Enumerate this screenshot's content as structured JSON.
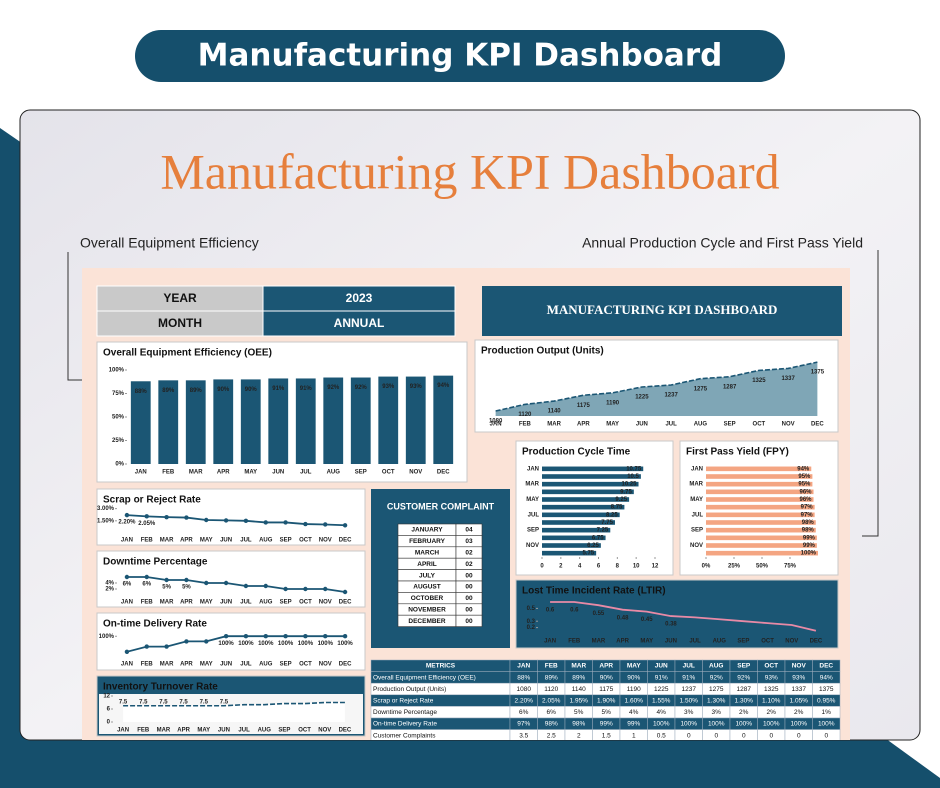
{
  "banner": "Manufacturing KPI Dashboard",
  "title": "Manufacturing KPI Dashboard",
  "callouts": [
    "Overall Equipment Efficiency",
    "Annual Production Cycle and First Pass Yield"
  ],
  "selector": {
    "year_label": "YEAR",
    "year": "2023",
    "month_label": "MONTH",
    "month": "ANNUAL"
  },
  "dashboard_header": "MANUFACTURING KPI DASHBOARD",
  "customer_complaint": {
    "title": "CUSTOMER COMPLAINT",
    "rows": [
      [
        "JANUARY",
        "04"
      ],
      [
        "FEBRUARY",
        "03"
      ],
      [
        "MARCH",
        "02"
      ],
      [
        "APRIL",
        "02"
      ],
      [
        "JULY",
        "00"
      ],
      [
        "AUGUST",
        "00"
      ],
      [
        "OCTOBER",
        "00"
      ],
      [
        "NOVEMBER",
        "00"
      ],
      [
        "DECEMBER",
        "00"
      ]
    ]
  },
  "metrics_table": {
    "header": [
      "METRICS",
      "JAN",
      "FEB",
      "MAR",
      "APR",
      "MAY",
      "JUN",
      "JUL",
      "AUG",
      "SEP",
      "OCT",
      "NOV",
      "DEC"
    ],
    "rows": [
      [
        "Overall Equipment Efficiency (OEE)",
        "88%",
        "89%",
        "89%",
        "90%",
        "90%",
        "91%",
        "91%",
        "92%",
        "92%",
        "93%",
        "93%",
        "94%"
      ],
      [
        "Production Output (Units)",
        "1080",
        "1120",
        "1140",
        "1175",
        "1190",
        "1225",
        "1237",
        "1275",
        "1287",
        "1325",
        "1337",
        "1375"
      ],
      [
        "Scrap or Reject Rate",
        "2.20%",
        "2.05%",
        "1.95%",
        "1.90%",
        "1.60%",
        "1.55%",
        "1.50%",
        "1.30%",
        "1.30%",
        "1.10%",
        "1.05%",
        "0.95%"
      ],
      [
        "Downtime Percentage",
        "6%",
        "6%",
        "5%",
        "5%",
        "4%",
        "4%",
        "3%",
        "3%",
        "2%",
        "2%",
        "2%",
        "1%"
      ],
      [
        "On-time Delivery Rate",
        "97%",
        "98%",
        "98%",
        "99%",
        "99%",
        "100%",
        "100%",
        "100%",
        "100%",
        "100%",
        "100%",
        "100%"
      ],
      [
        "Customer Complaints",
        "3.5",
        "2.5",
        "2",
        "1.5",
        "1",
        "0.5",
        "0",
        "0",
        "0",
        "0",
        "0",
        "0"
      ]
    ]
  },
  "chart_data": [
    {
      "type": "bar",
      "title": "Overall Equipment Efficiency (OEE)",
      "categories": [
        "JAN",
        "FEB",
        "MAR",
        "APR",
        "MAY",
        "JUN",
        "JUL",
        "AUG",
        "SEP",
        "OCT",
        "NOV",
        "DEC"
      ],
      "values": [
        88,
        89,
        89,
        90,
        90,
        91,
        91,
        92,
        92,
        93,
        93,
        94
      ],
      "value_labels": [
        "88%",
        "89%",
        "89%",
        "90%",
        "90%",
        "91%",
        "91%",
        "92%",
        "92%",
        "93%",
        "93%",
        "94%"
      ],
      "color": "#1b5674",
      "ylim": [
        0,
        100
      ],
      "yticks": [
        {
          "value": 0,
          "label": "0%"
        },
        {
          "value": 25,
          "label": "25%"
        },
        {
          "value": 50,
          "label": "50%"
        },
        {
          "value": 75,
          "label": "75%"
        },
        {
          "value": 100,
          "label": "100%"
        }
      ]
    },
    {
      "type": "area",
      "title": "Production Output (Units)",
      "categories": [
        "JAN",
        "FEB",
        "MAR",
        "APR",
        "MAY",
        "JUN",
        "JUL",
        "AUG",
        "SEP",
        "OCT",
        "NOV",
        "DEC"
      ],
      "values": [
        1080,
        1120,
        1140,
        1175,
        1190,
        1225,
        1237,
        1275,
        1287,
        1325,
        1337,
        1375
      ],
      "color": "#7fa6b6",
      "line_color": "#1b5674",
      "ylim": [
        1050,
        1400
      ]
    },
    {
      "type": "hbar",
      "title": "Production Cycle Time",
      "categories": [
        "JAN",
        null,
        "MAR",
        null,
        "MAY",
        null,
        "JUL",
        null,
        "SEP",
        null,
        "NOV",
        null
      ],
      "values": [
        10.75,
        10.5,
        10.25,
        9.75,
        9.25,
        8.75,
        8.25,
        7.75,
        7.25,
        6.75,
        6.25,
        5.75
      ],
      "color": "#1b5674",
      "xlim": [
        0,
        12
      ],
      "xticks": [
        0,
        2,
        4,
        6,
        8,
        10,
        12
      ]
    },
    {
      "type": "hbar",
      "title": "First Pass Yield (FPY)",
      "categories": [
        "JAN",
        null,
        "MAR",
        null,
        "MAY",
        null,
        "JUL",
        null,
        "SEP",
        null,
        "NOV",
        null
      ],
      "values": [
        94,
        95,
        95,
        96,
        96,
        97,
        97,
        98,
        98,
        99,
        99,
        100
      ],
      "value_labels": [
        "94%",
        "95%",
        "95%",
        "96%",
        "96%",
        "97%",
        "97%",
        "98%",
        "98%",
        "99%",
        "99%",
        "100%"
      ],
      "color": "#f4a582",
      "xlim": [
        0,
        100
      ],
      "xticks": [
        {
          "value": 0,
          "label": "0%"
        },
        {
          "value": 25,
          "label": "25%"
        },
        {
          "value": 50,
          "label": "50%"
        },
        {
          "value": 75,
          "label": "75%"
        }
      ]
    },
    {
      "type": "line",
      "title": "Scrap or Reject Rate",
      "categories": [
        "JAN",
        "FEB",
        "MAR",
        "APR",
        "MAY",
        "JUN",
        "JUL",
        "AUG",
        "SEP",
        "OCT",
        "NOV",
        "DEC"
      ],
      "values": [
        2.2,
        2.05,
        1.95,
        1.9,
        1.6,
        1.55,
        1.5,
        1.3,
        1.3,
        1.1,
        1.05,
        0.95
      ],
      "value_labels": [
        "2.20%",
        "2.05%",
        null,
        null,
        null,
        null,
        null,
        null,
        null,
        null,
        null,
        null
      ],
      "color": "#1b5674",
      "ylim": [
        0,
        3.2
      ],
      "yticks": [
        {
          "value": 1.5,
          "label": "1.50%"
        },
        {
          "value": 3,
          "label": "3.00%"
        }
      ]
    },
    {
      "type": "line",
      "title": "Downtime Percentage",
      "categories": [
        "JAN",
        "FEB",
        "MAR",
        "APR",
        "MAY",
        "JUN",
        "JUL",
        "AUG",
        "SEP",
        "OCT",
        "NOV",
        "DEC"
      ],
      "values": [
        6,
        6,
        5,
        5,
        4,
        4,
        3,
        3,
        2,
        2,
        2,
        1
      ],
      "value_labels": [
        "6%",
        "6%",
        "5%",
        "5%",
        null,
        null,
        null,
        null,
        null,
        null,
        null,
        null
      ],
      "color": "#1b5674",
      "ylim": [
        0,
        9
      ],
      "yticks": [
        {
          "value": 2,
          "label": "2%"
        },
        {
          "value": 4,
          "label": "4%"
        }
      ]
    },
    {
      "type": "line",
      "title": "On-time Delivery Rate",
      "categories": [
        "JAN",
        "FEB",
        "MAR",
        "APR",
        "MAY",
        "JUN",
        "JUL",
        "AUG",
        "SEP",
        "OCT",
        "NOV",
        "DEC"
      ],
      "values": [
        97,
        98,
        98,
        99,
        99,
        100,
        100,
        100,
        100,
        100,
        100,
        100
      ],
      "value_labels": [
        null,
        null,
        null,
        null,
        null,
        "100%",
        "100%",
        "100%",
        "100%",
        "100%",
        "100%",
        "100%"
      ],
      "color": "#1b5674",
      "ylim": [
        96,
        101
      ],
      "yticks": [
        {
          "value": 100,
          "label": "100%"
        }
      ]
    },
    {
      "type": "line",
      "title": "Lost Time Incident Rate (LTIR)",
      "categories": [
        "JAN",
        "FEB",
        "MAR",
        "APR",
        "MAY",
        "JUN",
        "JUL",
        "AUG",
        "SEP",
        "OCT",
        "NOV",
        "DEC"
      ],
      "values": [
        0.6,
        0.6,
        0.55,
        0.48,
        0.45,
        0.38,
        0.36,
        0.33,
        0.3,
        0.27,
        0.24,
        0.15
      ],
      "value_labels": [
        "0.6",
        "0.6",
        "0.55",
        "0.48",
        "0.45",
        "0.38",
        null,
        null,
        null,
        null,
        null,
        null
      ],
      "color": "#e88aa6",
      "ylim": [
        0.1,
        0.6
      ],
      "yticks": [
        0.2,
        0.3,
        0.5
      ]
    },
    {
      "type": "area",
      "title": "Inventory Turnover Rate",
      "categories": [
        "JAN",
        "FEB",
        "MAR",
        "APR",
        "MAY",
        "JUN",
        "JUL",
        "AUG",
        "SEP",
        "OCT",
        "NOV",
        "DEC"
      ],
      "values": [
        7.5,
        7.5,
        7.5,
        7.5,
        7.5,
        7.5,
        8,
        8,
        8.5,
        8.5,
        9,
        9
      ],
      "value_labels": [
        "7.5",
        "7.5",
        "7.5",
        "7.5",
        "7.5",
        "7.5",
        null,
        null,
        null,
        null,
        null,
        null
      ],
      "color": "#ffffff",
      "line_color": "#1b5674",
      "ylim": [
        0,
        12
      ],
      "yticks": [
        0,
        6,
        12
      ]
    }
  ]
}
